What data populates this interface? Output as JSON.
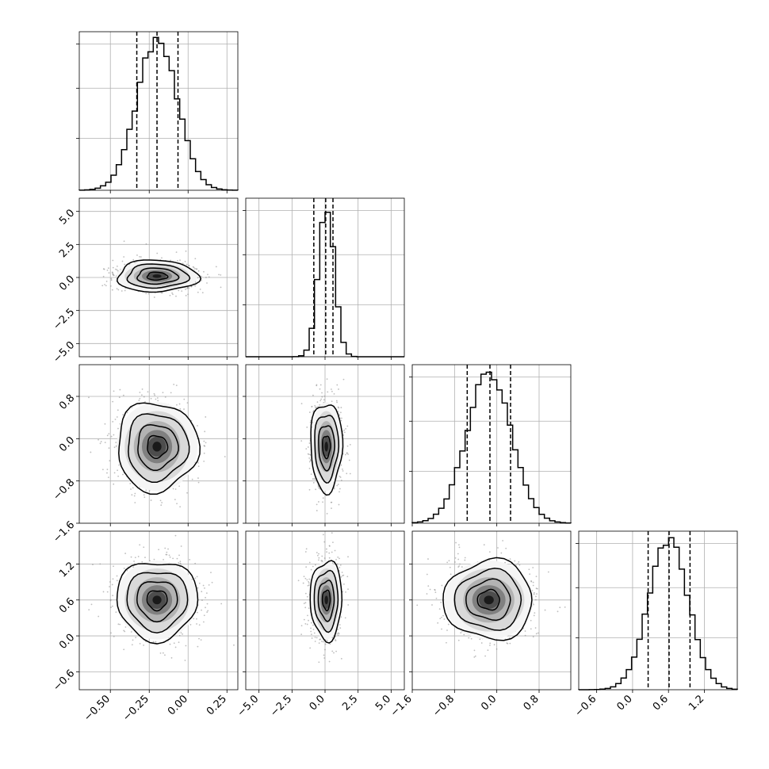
{
  "chart_data": {
    "type": "corner",
    "grid": true,
    "n_params": 4,
    "colors": {
      "line": "#000000",
      "grid": "#b0b0b0",
      "points": "#888888",
      "density": [
        "#f5f5f5",
        "#d9d9d9",
        "#b3b3b3",
        "#808080",
        "#4d4d4d",
        "#1a1a1a"
      ]
    },
    "params": [
      {
        "center": -0.2,
        "sigma": 0.13,
        "range": [
          -0.7,
          0.32
        ],
        "ticks": [
          -0.5,
          -0.25,
          0.0,
          0.25
        ],
        "tick_labels": [
          "−0.50",
          "−0.25",
          "0.00",
          "0.25"
        ],
        "quantiles": [
          -0.33,
          -0.2,
          -0.065
        ]
      },
      {
        "center": 0.1,
        "sigma": 0.6,
        "range": [
          -6,
          6
        ],
        "ticks": [
          -5,
          -2.5,
          0,
          2.5,
          5
        ],
        "tick_labels": [
          "−5.0",
          "−2.5",
          "0.0",
          "2.5",
          "5.0"
        ],
        "quantiles": [
          -0.85,
          0.05,
          0.6
        ]
      },
      {
        "center": -0.15,
        "sigma": 0.42,
        "range": [
          -1.6,
          1.4
        ],
        "ticks": [
          -1.6,
          -0.8,
          0.0,
          0.8
        ],
        "tick_labels": [
          "−1.6",
          "−0.8",
          "0.0",
          "0.8"
        ],
        "quantiles": [
          -0.56,
          -0.13,
          0.26
        ]
      },
      {
        "center": 0.6,
        "sigma": 0.33,
        "range": [
          -0.9,
          1.75
        ],
        "ticks": [
          -0.6,
          0.0,
          0.6,
          1.2
        ],
        "tick_labels": [
          "−0.6",
          "0.0",
          "0.6",
          "1.2"
        ],
        "quantiles": [
          0.26,
          0.61,
          0.96
        ]
      }
    ],
    "histogram_bins": 30
  }
}
